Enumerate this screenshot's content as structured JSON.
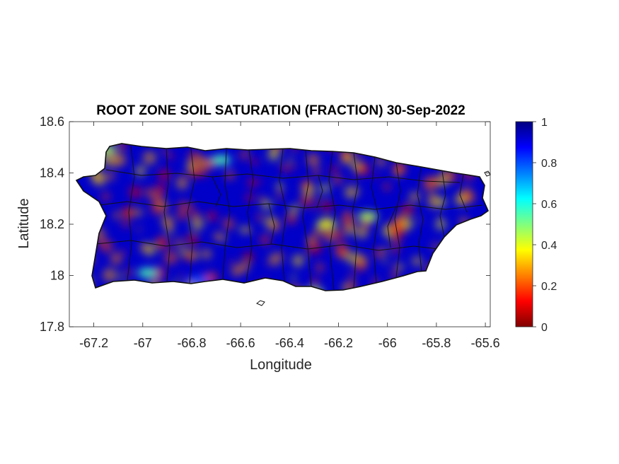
{
  "figure": {
    "title": "ROOT ZONE SOIL SATURATION (FRACTION) 30-Sep-2022",
    "xlabel": "Longitude",
    "ylabel": "Latitude"
  },
  "axes": {
    "x_ticks": [
      "-67.2",
      "-67",
      "-66.8",
      "-66.6",
      "-66.4",
      "-66.2",
      "-66",
      "-65.8",
      "-65.6"
    ],
    "y_ticks": [
      "18.6",
      "18.4",
      "18.2",
      "18",
      "17.8"
    ],
    "xlim": [
      -67.3,
      -65.58
    ],
    "ylim": [
      17.8,
      18.6
    ]
  },
  "colorbar": {
    "ticks": [
      "1",
      "0.8",
      "0.6",
      "0.4",
      "0.2",
      "0"
    ],
    "range": [
      0,
      1
    ],
    "colormap": "jet"
  },
  "map": {
    "region": "Puerto Rico",
    "field": "root zone soil saturation",
    "background_color": "#0000c8",
    "dry_spots": [
      {
        "lon": -66.98,
        "lat": 18.01,
        "value": 0.45
      },
      {
        "lon": -66.77,
        "lat": 17.98,
        "value": 0.2
      },
      {
        "lon": -66.68,
        "lat": 18.45,
        "value": 0.45
      },
      {
        "lon": -67.15,
        "lat": 18.49,
        "value": 0.55
      },
      {
        "lon": -66.25,
        "lat": 18.2,
        "value": 0.6
      },
      {
        "lon": -66.08,
        "lat": 18.23,
        "value": 0.55
      },
      {
        "lon": -66.3,
        "lat": 17.93,
        "value": 0.55
      }
    ]
  }
}
